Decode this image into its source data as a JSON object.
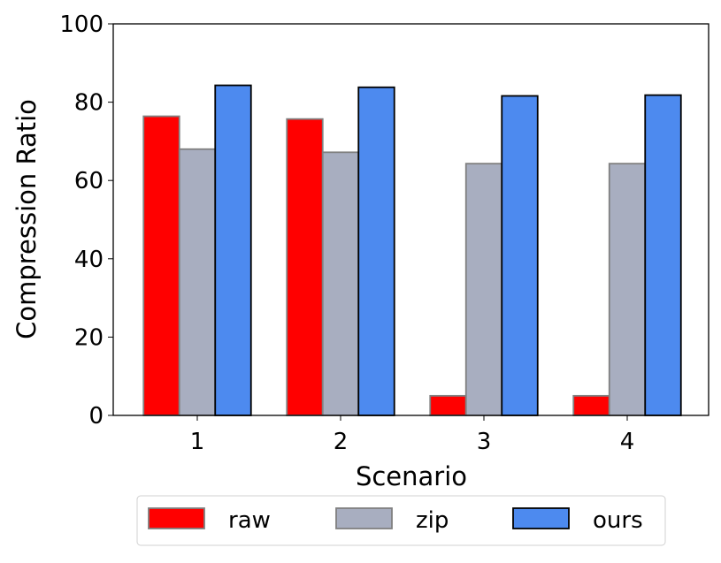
{
  "chart_data": {
    "type": "bar",
    "title": "",
    "xlabel": "Scenario",
    "ylabel": "Compression Ratio",
    "ylim": [
      0,
      100
    ],
    "yticks": [
      0,
      20,
      40,
      60,
      80,
      100
    ],
    "categories": [
      "1",
      "2",
      "3",
      "4"
    ],
    "grid": false,
    "legend_position": "bottom-center",
    "series": [
      {
        "name": "raw",
        "values": [
          76.4,
          75.7,
          5.0,
          5.0
        ],
        "color": "#ff0000",
        "edge": "#808080"
      },
      {
        "name": "zip",
        "values": [
          68.0,
          67.2,
          64.3,
          64.3
        ],
        "color": "#a8aec0",
        "edge": "#808080"
      },
      {
        "name": "ours",
        "values": [
          84.3,
          83.8,
          81.6,
          81.8
        ],
        "color": "#4d8aef",
        "edge": "#000000"
      }
    ]
  }
}
